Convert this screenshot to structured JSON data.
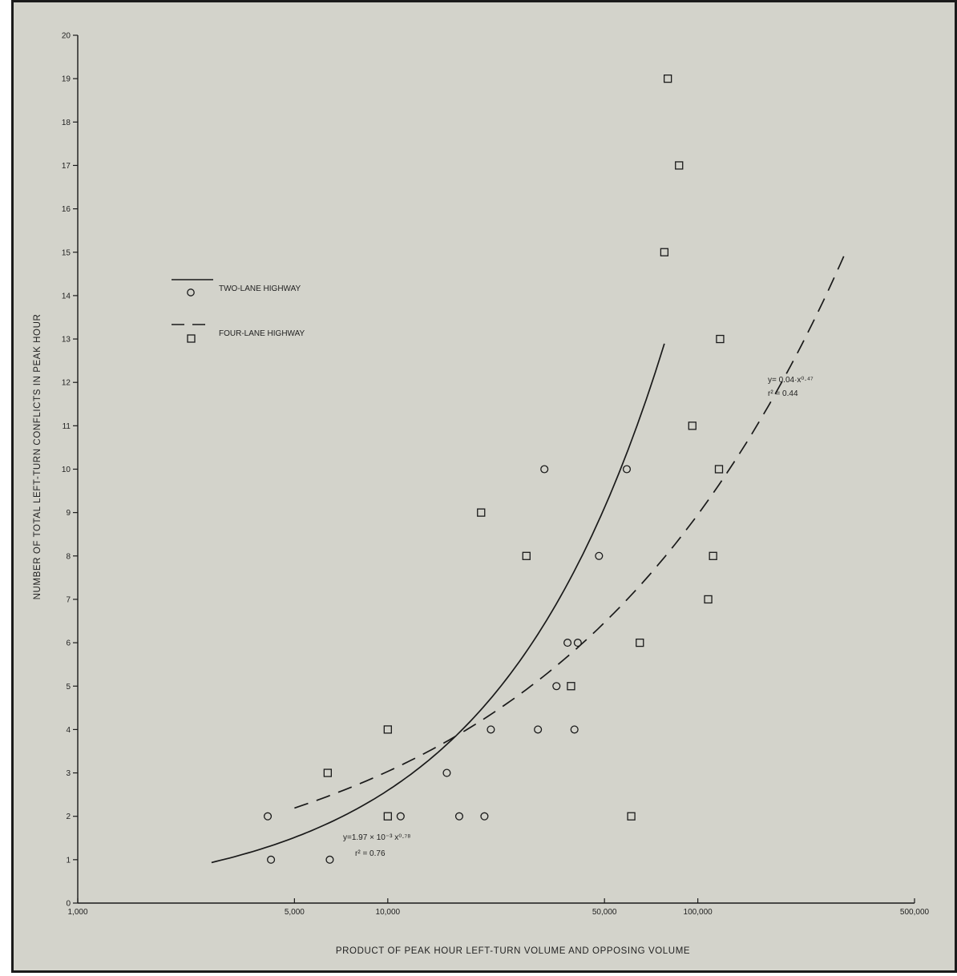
{
  "chart_data": {
    "type": "scatter",
    "title": "",
    "xlabel": "PRODUCT OF PEAK HOUR LEFT-TURN VOLUME AND OPPOSING VOLUME",
    "ylabel": "NUMBER OF TOTAL LEFT-TURN CONFLICTS IN PEAK HOUR",
    "x_scale": "log",
    "xlim": [
      1000,
      500000
    ],
    "ylim": [
      0,
      20
    ],
    "x_ticks": [
      1000,
      5000,
      10000,
      50000,
      100000,
      500000
    ],
    "x_tick_labels": [
      "1,000",
      "5,000",
      "10,000",
      "50,000",
      "100,000",
      "500,000"
    ],
    "y_ticks": [
      0,
      1,
      2,
      3,
      4,
      5,
      6,
      7,
      8,
      9,
      10,
      11,
      12,
      13,
      14,
      15,
      16,
      17,
      18,
      19,
      20
    ],
    "y_tick_labels": [
      "0",
      "1",
      "2",
      "3",
      "4",
      "5",
      "6",
      "7",
      "8",
      "9",
      "10",
      "11",
      "12",
      "13",
      "14",
      "15",
      "16",
      "17",
      "18",
      "19",
      "20"
    ],
    "grid": false,
    "legend_position": "upper-left",
    "series": [
      {
        "name": "TWO-LANE HIGHWAY",
        "marker": "circle",
        "line_style": "solid",
        "points": [
          {
            "x": 4100,
            "y": 2
          },
          {
            "x": 4200,
            "y": 1
          },
          {
            "x": 6500,
            "y": 1
          },
          {
            "x": 11000,
            "y": 2
          },
          {
            "x": 15500,
            "y": 3
          },
          {
            "x": 17000,
            "y": 2
          },
          {
            "x": 20500,
            "y": 2
          },
          {
            "x": 21500,
            "y": 4
          },
          {
            "x": 30500,
            "y": 4
          },
          {
            "x": 32000,
            "y": 10
          },
          {
            "x": 35000,
            "y": 5
          },
          {
            "x": 38000,
            "y": 6
          },
          {
            "x": 41000,
            "y": 6
          },
          {
            "x": 40000,
            "y": 4
          },
          {
            "x": 48000,
            "y": 8
          },
          {
            "x": 59000,
            "y": 10
          }
        ],
        "fit": {
          "label": "y=1.97 × 10⁻³ x⁰·⁷⁸",
          "r2_label": "r² = 0.76",
          "x_range": [
            2700,
            78000
          ]
        }
      },
      {
        "name": "FOUR-LANE HIGHWAY",
        "marker": "square",
        "line_style": "dashed",
        "points": [
          {
            "x": 6400,
            "y": 3
          },
          {
            "x": 10000,
            "y": 4
          },
          {
            "x": 10000,
            "y": 2
          },
          {
            "x": 20000,
            "y": 9
          },
          {
            "x": 28000,
            "y": 8
          },
          {
            "x": 39000,
            "y": 5
          },
          {
            "x": 61000,
            "y": 2
          },
          {
            "x": 65000,
            "y": 6
          },
          {
            "x": 78000,
            "y": 15
          },
          {
            "x": 80000,
            "y": 19
          },
          {
            "x": 87000,
            "y": 17
          },
          {
            "x": 96000,
            "y": 11
          },
          {
            "x": 108000,
            "y": 7
          },
          {
            "x": 112000,
            "y": 8
          },
          {
            "x": 117000,
            "y": 10
          },
          {
            "x": 118000,
            "y": 13
          }
        ],
        "fit": {
          "label": "y= 0.04·x⁰·⁴⁷",
          "r2_label": "r² = 0.44",
          "x_range": [
            5000,
            300000
          ]
        }
      }
    ]
  }
}
